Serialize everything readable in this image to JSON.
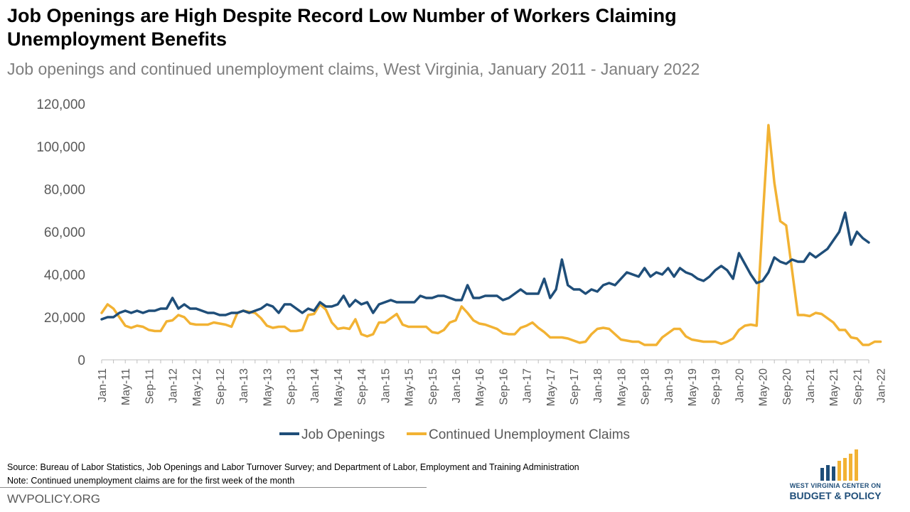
{
  "title": "Job Openings are High Despite Record Low Number of Workers Claiming Unemployment Benefits",
  "subtitle": "Job openings and continued unemployment claims, West Virginia, January 2011 - January 2022",
  "footer": {
    "source": "Source: Bureau of Labor Statistics, Job Openings and Labor Turnover Survey; and Department of Labor, Employment and Training Administration",
    "note": "Note: Continued unemployment  claims are for the first week of the month",
    "site": "WVPOLICY.ORG"
  },
  "logo": {
    "top_text": "WEST VIRGINIA CENTER ON",
    "bottom_text": "BUDGET & POLICY",
    "colors": {
      "blue": "#1f4e79",
      "gold": "#f2b233"
    }
  },
  "chart_data": {
    "type": "line",
    "title": "Job Openings are High Despite Record Low Number of Workers Claiming Unemployment Benefits",
    "subtitle": "Job openings and continued unemployment claims, West Virginia, January 2011 - January 2022",
    "xlabel": "",
    "ylabel": "",
    "ylim": [
      0,
      120000
    ],
    "y_ticks": [
      "0",
      "20,000",
      "40,000",
      "60,000",
      "80,000",
      "100,000",
      "120,000"
    ],
    "x_tick_labels": [
      "Jan-11",
      "May-11",
      "Sep-11",
      "Jan-12",
      "May-12",
      "Sep-12",
      "Jan-13",
      "May-13",
      "Sep-13",
      "Jan-14",
      "May-14",
      "Sep-14",
      "Jan-15",
      "May-15",
      "Sep-15",
      "Jan-16",
      "May-16",
      "Sep-16",
      "Jan-17",
      "May-17",
      "Sep-17",
      "Jan-18",
      "May-18",
      "Sep-18",
      "Jan-19",
      "May-19",
      "Sep-19",
      "Jan-20",
      "May-20",
      "Sep-20",
      "Jan-21",
      "May-21",
      "Sep-21",
      "Jan-22"
    ],
    "x_start": "2011-01",
    "x_end": "2022-01",
    "legend_position": "bottom",
    "grid": false,
    "series": [
      {
        "name": "Job Openings",
        "color": "#1f4e79",
        "values": [
          19000,
          20000,
          20000,
          22000,
          23000,
          22000,
          23000,
          22000,
          23000,
          23000,
          24000,
          24000,
          29000,
          24000,
          26000,
          24000,
          24000,
          23000,
          22000,
          22000,
          21000,
          21000,
          22000,
          22000,
          23000,
          22000,
          23000,
          24000,
          26000,
          25000,
          22000,
          26000,
          26000,
          24000,
          22000,
          24000,
          23000,
          27000,
          25000,
          25000,
          26000,
          30000,
          25000,
          28000,
          26000,
          27000,
          22000,
          26000,
          27000,
          28000,
          27000,
          27000,
          27000,
          27000,
          30000,
          29000,
          29000,
          30000,
          30000,
          29000,
          28000,
          28000,
          35000,
          29000,
          29000,
          30000,
          30000,
          30000,
          28000,
          29000,
          31000,
          33000,
          31000,
          31000,
          31000,
          38000,
          29000,
          33000,
          47000,
          35000,
          33000,
          33000,
          31000,
          33000,
          32000,
          35000,
          36000,
          35000,
          38000,
          41000,
          40000,
          39000,
          43000,
          39000,
          41000,
          40000,
          43000,
          39000,
          43000,
          41000,
          40000,
          38000,
          37000,
          39000,
          42000,
          44000,
          42000,
          38000,
          50000,
          45000,
          40000,
          36000,
          37000,
          41000,
          48000,
          46000,
          45000,
          47000,
          46000,
          46000,
          50000,
          48000,
          50000,
          52000,
          56000,
          60000,
          69000,
          54000,
          60000,
          57000,
          55000
        ]
      },
      {
        "name": "Continued Unemployment Claims",
        "color": "#f2b233",
        "values": [
          22000,
          26000,
          24000,
          20000,
          16000,
          15000,
          16000,
          15500,
          14000,
          13500,
          13500,
          18000,
          18500,
          21000,
          20000,
          17000,
          16500,
          16500,
          16500,
          17500,
          17000,
          16500,
          15500,
          22000,
          23000,
          22500,
          22000,
          19500,
          16000,
          15000,
          15500,
          15500,
          13500,
          13500,
          14000,
          21000,
          21500,
          26000,
          23500,
          17500,
          14500,
          15000,
          14500,
          19000,
          12000,
          11000,
          12000,
          17500,
          17500,
          19500,
          21500,
          16500,
          15500,
          15500,
          15500,
          15500,
          13000,
          12500,
          14000,
          17500,
          18500,
          25000,
          22000,
          18500,
          17000,
          16500,
          15500,
          14500,
          12500,
          12000,
          12000,
          15000,
          16000,
          17500,
          15000,
          13000,
          10500,
          10500,
          10500,
          10000,
          9000,
          8000,
          8500,
          12000,
          14500,
          15000,
          14500,
          12000,
          9500,
          9000,
          8500,
          8500,
          7000,
          7000,
          7000,
          10500,
          12500,
          14500,
          14500,
          11000,
          9500,
          9000,
          8500,
          8500,
          8500,
          7500,
          8500,
          10000,
          14000,
          16000,
          16500,
          16000,
          65000,
          110000,
          83000,
          65000,
          63000,
          42000,
          21000,
          21000,
          20500,
          22000,
          21500,
          19500,
          17500,
          14000,
          14000,
          10500,
          10000,
          7000,
          7000,
          8500,
          8500
        ]
      }
    ]
  }
}
